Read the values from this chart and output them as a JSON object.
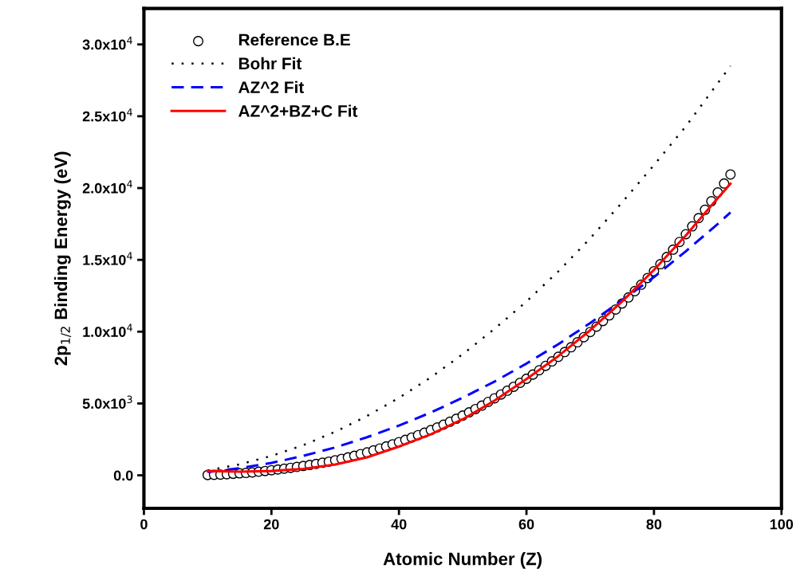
{
  "chart_data": {
    "type": "line",
    "xlabel": "Atomic Number (Z)",
    "ylabel": "2p$_{1/2}$ Binding Energy (eV)",
    "xlim": [
      0,
      100
    ],
    "xticks": [
      0,
      20,
      40,
      60,
      80,
      100
    ],
    "ylim": [
      -2300,
      32500
    ],
    "yticks": [
      {
        "value": 0,
        "label": "0.0"
      },
      {
        "value": 5000,
        "label": "5.0x10$^{3}$"
      },
      {
        "value": 10000,
        "label": "1.0x10$^{4}$"
      },
      {
        "value": 15000,
        "label": "1.5x10$^{4}$"
      },
      {
        "value": 20000,
        "label": "2.0x10$^{4}$"
      },
      {
        "value": 25000,
        "label": "2.5x10$^{4}$"
      },
      {
        "value": 30000,
        "label": "3.0x10$^{4}$"
      }
    ],
    "grid": false,
    "legend": "top left",
    "series": [
      {
        "name": "Reference B.E",
        "type": "scatter",
        "marker": "circle",
        "color": "#000000",
        "x": [
          10,
          11,
          12,
          13,
          14,
          15,
          16,
          17,
          18,
          19,
          20,
          21,
          22,
          23,
          24,
          25,
          26,
          27,
          28,
          29,
          30,
          31,
          32,
          33,
          34,
          35,
          36,
          37,
          38,
          39,
          40,
          41,
          42,
          43,
          44,
          45,
          46,
          47,
          48,
          49,
          50,
          51,
          52,
          53,
          54,
          55,
          56,
          57,
          58,
          59,
          60,
          61,
          62,
          63,
          64,
          65,
          66,
          67,
          68,
          69,
          70,
          71,
          72,
          73,
          74,
          75,
          76,
          77,
          78,
          79,
          80,
          81,
          82,
          83,
          84,
          85,
          86,
          87,
          88,
          89,
          90,
          91,
          92
        ],
        "values": [
          22,
          31,
          50,
          73,
          100,
          136,
          164,
          202,
          251,
          297,
          350,
          404,
          460,
          520,
          584,
          650,
          720,
          793,
          870,
          952,
          1045,
          1143,
          1248,
          1359,
          1474,
          1596,
          1731,
          1864,
          2007,
          2156,
          2307,
          2465,
          2625,
          2793,
          2967,
          3146,
          3330,
          3524,
          3727,
          3938,
          4156,
          4380,
          4612,
          4852,
          5107,
          5359,
          5624,
          5891,
          6164,
          6440,
          6722,
          7013,
          7312,
          7617,
          7930,
          8252,
          8581,
          8918,
          9264,
          9617,
          9978,
          10349,
          10739,
          11136,
          11544,
          11959,
          12385,
          12824,
          13273,
          13734,
          14209,
          14698,
          15200,
          15711,
          16244,
          16785,
          17337,
          17907,
          18484,
          19083,
          19693,
          20314,
          20948
        ]
      },
      {
        "name": "Bohr Fit",
        "line_style": "dotted",
        "color": "#000000",
        "x": [
          10,
          15,
          20,
          25,
          30,
          35,
          40,
          45,
          50,
          55,
          60,
          65,
          70,
          75,
          80,
          85,
          90,
          92
        ],
        "values": [
          340,
          760,
          1350,
          2100,
          3030,
          4130,
          5390,
          6820,
          8430,
          10200,
          12100,
          14200,
          16500,
          19000,
          21600,
          24300,
          27300,
          28500
        ]
      },
      {
        "name": "AZ^2 Fit",
        "line_style": "dashed",
        "color": "#0000ff",
        "x": [
          10,
          15,
          20,
          25,
          30,
          35,
          40,
          45,
          50,
          55,
          60,
          65,
          70,
          75,
          80,
          85,
          90,
          92
        ],
        "values": [
          220,
          490,
          860,
          1350,
          1940,
          2650,
          3460,
          4370,
          5400,
          6530,
          7780,
          9130,
          10600,
          12200,
          13800,
          15600,
          17500,
          18300
        ]
      },
      {
        "name": "AZ^2+BZ+C Fit",
        "line_style": "solid",
        "color": "#ff0000",
        "x": [
          10,
          15,
          20,
          25,
          30,
          35,
          40,
          45,
          50,
          55,
          60,
          65,
          70,
          75,
          80,
          85,
          90,
          92
        ],
        "values": [
          300,
          250,
          300,
          450,
          750,
          1250,
          2000,
          2850,
          3900,
          5200,
          6700,
          8300,
          10100,
          12100,
          14300,
          16700,
          19300,
          20300
        ]
      }
    ]
  }
}
